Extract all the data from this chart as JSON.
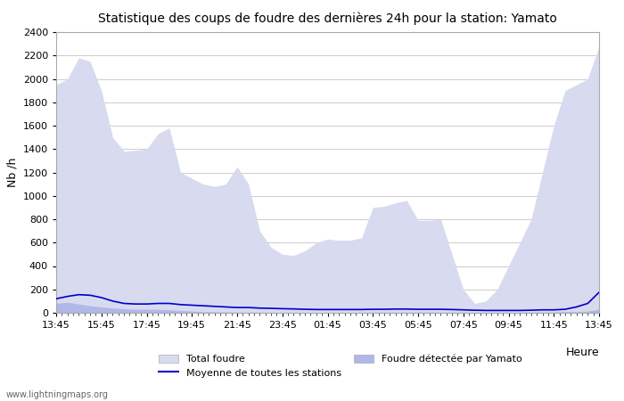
{
  "title": "Statistique des coups de foudre des dernières 24h pour la station: Yamato",
  "xlabel": "Heure",
  "ylabel": "Nb /h",
  "xlim": [
    0,
    24
  ],
  "ylim": [
    0,
    2400
  ],
  "yticks": [
    0,
    200,
    400,
    600,
    800,
    1000,
    1200,
    1400,
    1600,
    1800,
    2000,
    2200,
    2400
  ],
  "xtick_labels": [
    "13:45",
    "15:45",
    "17:45",
    "19:45",
    "21:45",
    "23:45",
    "01:45",
    "03:45",
    "05:45",
    "07:45",
    "09:45",
    "11:45",
    "13:45"
  ],
  "bg_color": "#ffffff",
  "plot_bg_color": "#ffffff",
  "grid_color": "#cccccc",
  "fill_total_color": "#d8daef",
  "fill_yamato_color": "#b0b8e8",
  "line_color": "#0000cc",
  "watermark": "www.lightningmaps.org",
  "legend": {
    "total_foudre": "Total foudre",
    "moyenne": "Moyenne de toutes les stations",
    "yamato": "Foudre détectée par Yamato"
  },
  "x_positions": [
    0,
    0.5,
    1,
    1.5,
    2,
    2.5,
    3,
    3.5,
    4,
    4.5,
    5,
    5.5,
    6,
    6.5,
    7,
    7.5,
    8,
    8.5,
    9,
    9.5,
    10,
    10.5,
    11,
    11.5,
    12,
    12.5,
    13,
    13.5,
    14,
    14.5,
    15,
    15.5,
    16,
    16.5,
    17,
    17.5,
    18,
    18.5,
    19,
    19.5,
    20,
    20.5,
    21,
    21.5,
    22,
    22.5,
    23,
    23.5,
    24
  ],
  "total_foudre": [
    1950,
    2000,
    2180,
    2150,
    1900,
    1500,
    1380,
    1390,
    1400,
    1530,
    1580,
    1200,
    1150,
    1100,
    1080,
    1100,
    1250,
    1100,
    700,
    560,
    500,
    490,
    530,
    600,
    630,
    620,
    620,
    640,
    900,
    910,
    940,
    960,
    790,
    790,
    800,
    500,
    200,
    80,
    100,
    200,
    400,
    600,
    800,
    1200,
    1600,
    1900,
    1950,
    2000,
    2280
  ],
  "yamato_foudre": [
    80,
    90,
    75,
    60,
    50,
    40,
    35,
    30,
    30,
    30,
    25,
    20,
    15,
    10,
    8,
    7,
    5,
    5,
    5,
    4,
    3,
    3,
    3,
    3,
    3,
    3,
    3,
    3,
    5,
    5,
    5,
    5,
    5,
    5,
    5,
    5,
    5,
    3,
    3,
    3,
    3,
    5,
    5,
    5,
    5,
    10,
    10,
    15,
    30
  ],
  "moyenne_line": [
    120,
    140,
    155,
    150,
    130,
    100,
    80,
    75,
    75,
    80,
    80,
    70,
    65,
    60,
    55,
    50,
    45,
    45,
    40,
    38,
    35,
    33,
    30,
    28,
    28,
    28,
    28,
    28,
    30,
    30,
    32,
    32,
    30,
    30,
    30,
    28,
    25,
    22,
    20,
    20,
    20,
    20,
    22,
    25,
    25,
    30,
    50,
    80,
    175
  ]
}
